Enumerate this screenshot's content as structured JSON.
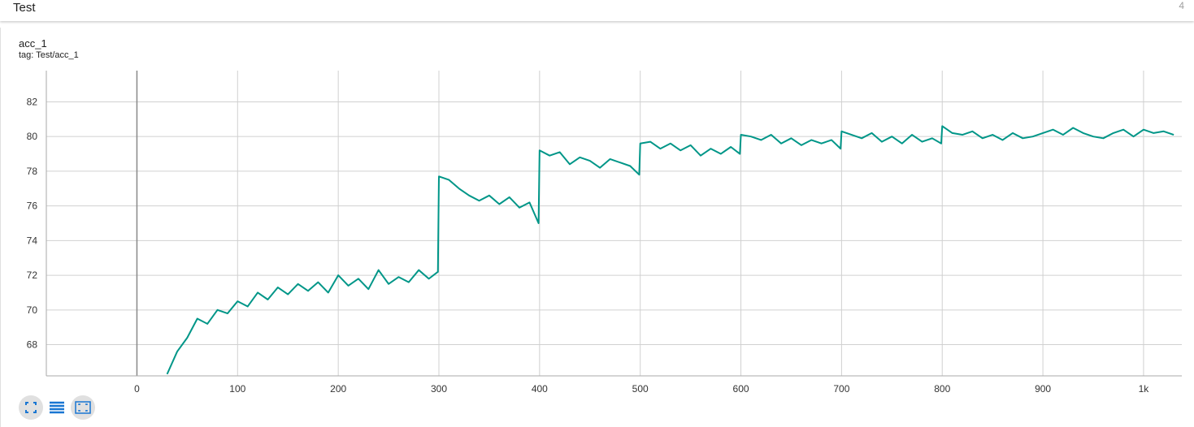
{
  "header": {
    "title": "Test",
    "count": "4"
  },
  "card": {
    "title": "acc_1",
    "tag": "tag: Test/acc_1"
  },
  "chart_data": {
    "type": "line",
    "x": [
      30,
      40,
      50,
      60,
      70,
      80,
      90,
      100,
      110,
      120,
      130,
      140,
      150,
      160,
      170,
      180,
      190,
      200,
      210,
      220,
      230,
      240,
      250,
      260,
      270,
      280,
      290,
      299,
      300,
      310,
      320,
      330,
      340,
      350,
      360,
      370,
      380,
      390,
      399,
      400,
      410,
      420,
      430,
      440,
      450,
      460,
      470,
      480,
      490,
      499,
      500,
      510,
      520,
      530,
      540,
      550,
      560,
      570,
      580,
      590,
      599,
      600,
      610,
      620,
      630,
      640,
      650,
      660,
      670,
      680,
      690,
      699,
      700,
      710,
      720,
      730,
      740,
      750,
      760,
      770,
      780,
      790,
      799,
      800,
      810,
      820,
      830,
      840,
      850,
      860,
      870,
      880,
      890,
      900,
      910,
      920,
      930,
      940,
      950,
      960,
      970,
      980,
      990,
      1000,
      1010,
      1020,
      1030
    ],
    "series": [
      {
        "name": "acc_1",
        "color": "#009688",
        "values": [
          66.3,
          67.6,
          68.4,
          69.5,
          69.2,
          70.0,
          69.8,
          70.5,
          70.2,
          71.0,
          70.6,
          71.3,
          70.9,
          71.5,
          71.1,
          71.6,
          71.0,
          72.0,
          71.4,
          71.8,
          71.2,
          72.3,
          71.5,
          71.9,
          71.6,
          72.3,
          71.8,
          72.2,
          77.7,
          77.5,
          77.0,
          76.6,
          76.3,
          76.6,
          76.1,
          76.5,
          75.9,
          76.2,
          75.0,
          79.2,
          78.9,
          79.1,
          78.4,
          78.8,
          78.6,
          78.2,
          78.7,
          78.5,
          78.3,
          77.8,
          79.6,
          79.7,
          79.3,
          79.6,
          79.2,
          79.5,
          78.9,
          79.3,
          79.0,
          79.4,
          79.0,
          80.1,
          80.0,
          79.8,
          80.1,
          79.6,
          79.9,
          79.5,
          79.8,
          79.6,
          79.8,
          79.3,
          80.3,
          80.1,
          79.9,
          80.2,
          79.7,
          80.0,
          79.6,
          80.1,
          79.7,
          79.9,
          79.6,
          80.6,
          80.2,
          80.1,
          80.3,
          79.9,
          80.1,
          79.8,
          80.2,
          79.9,
          80.0,
          80.2,
          80.4,
          80.1,
          80.5,
          80.2,
          80.0,
          79.9,
          80.2,
          80.4,
          80.0,
          80.4,
          80.2,
          80.3,
          80.1
        ]
      }
    ],
    "xlim": [
      -90,
      1038
    ],
    "xticks": [
      0,
      100,
      200,
      300,
      400,
      500,
      600,
      700,
      800,
      900,
      {
        "value": 1000,
        "label": "1k"
      }
    ],
    "ylim": [
      66.2,
      83.8
    ],
    "yticks": [
      68,
      70,
      72,
      74,
      76,
      78,
      80,
      82
    ],
    "grid": true
  }
}
